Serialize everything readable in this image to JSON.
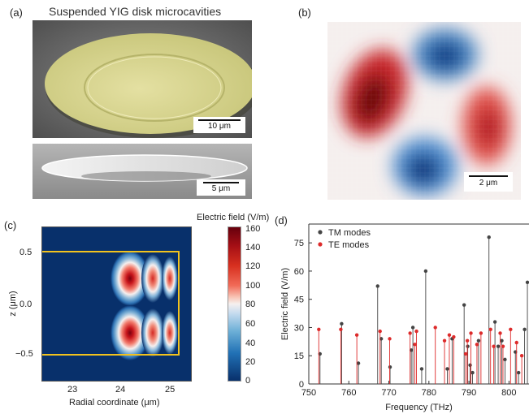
{
  "panel_a": {
    "label": "(a)",
    "title": "Suspended YIG disk microcavities",
    "scalebar_top": "10 μm",
    "scalebar_bottom": "5 μm"
  },
  "panel_b": {
    "label": "(b)",
    "scalebar": "2 μm"
  },
  "panel_c": {
    "label": "(c)",
    "colorbar_title": "Electric field (V/m)",
    "colorbar_ticks": [
      "160",
      "140",
      "120",
      "100",
      "80",
      "60",
      "40",
      "20",
      "0"
    ],
    "ylabel": "z (μm)",
    "xlabel": "Radial coordinate (μm)",
    "yticks": [
      "0.5",
      "0.0",
      "−0.5"
    ],
    "xticks": [
      "23",
      "24",
      "25"
    ]
  },
  "chart_data": {
    "type": "bar",
    "title": "",
    "xlabel": "Frequency (THz)",
    "ylabel": "Electric field (V/m)",
    "xlim": [
      750,
      805
    ],
    "ylim": [
      0,
      85
    ],
    "xticks": [
      "750",
      "760",
      "770",
      "780",
      "790",
      "800"
    ],
    "yticks": [
      "0",
      "15",
      "30",
      "45",
      "60",
      "75"
    ],
    "legend_position": "top-left",
    "series": [
      {
        "name": "TM modes",
        "color": "#444444",
        "points": [
          [
            752.8,
            16
          ],
          [
            758.2,
            32
          ],
          [
            762.4,
            11
          ],
          [
            767.2,
            52
          ],
          [
            768.1,
            24
          ],
          [
            770.3,
            9
          ],
          [
            775.6,
            18
          ],
          [
            776.0,
            30
          ],
          [
            778.2,
            8
          ],
          [
            779.2,
            60
          ],
          [
            784.6,
            8
          ],
          [
            785.8,
            24
          ],
          [
            788.8,
            42
          ],
          [
            789.7,
            20
          ],
          [
            790.3,
            10
          ],
          [
            790.9,
            6
          ],
          [
            792.4,
            23
          ],
          [
            795.0,
            78
          ],
          [
            796.5,
            33
          ],
          [
            797.3,
            20
          ],
          [
            798.2,
            23
          ],
          [
            799.0,
            13
          ],
          [
            801.6,
            17
          ],
          [
            802.4,
            6
          ],
          [
            803.9,
            29
          ],
          [
            804.6,
            54
          ]
        ]
      },
      {
        "name": "TE modes",
        "color": "#dd2b2b",
        "points": [
          [
            752.5,
            29
          ],
          [
            758.0,
            29
          ],
          [
            762.0,
            26
          ],
          [
            767.8,
            28
          ],
          [
            770.2,
            24
          ],
          [
            775.3,
            27
          ],
          [
            776.5,
            21
          ],
          [
            776.9,
            28
          ],
          [
            781.6,
            30
          ],
          [
            783.9,
            23
          ],
          [
            785.1,
            26
          ],
          [
            786.2,
            25
          ],
          [
            789.2,
            16
          ],
          [
            789.6,
            23
          ],
          [
            790.5,
            27
          ],
          [
            792.0,
            21
          ],
          [
            793.0,
            27
          ],
          [
            795.4,
            29
          ],
          [
            796.2,
            20
          ],
          [
            797.8,
            27
          ],
          [
            798.5,
            20
          ],
          [
            800.4,
            29
          ],
          [
            801.9,
            22
          ],
          [
            803.2,
            15
          ]
        ]
      }
    ]
  }
}
